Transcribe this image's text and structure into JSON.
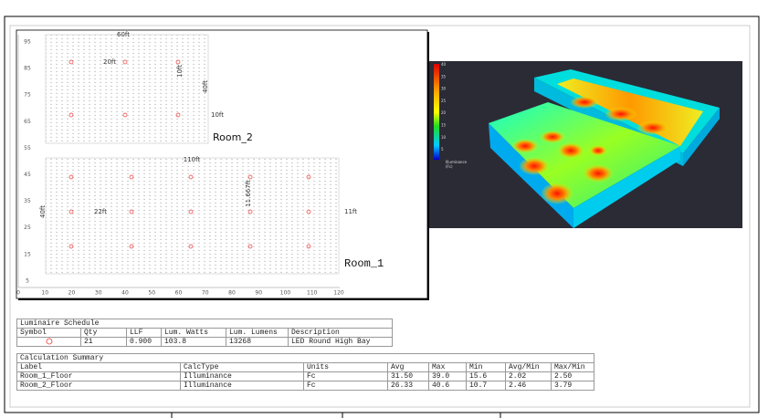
{
  "plan": {
    "y_axis": [
      95,
      85,
      75,
      65,
      55,
      45,
      35,
      25,
      15,
      5
    ],
    "x_axis": [
      0,
      10,
      20,
      30,
      40,
      50,
      60,
      70,
      80,
      90,
      100,
      110,
      120
    ],
    "rooms": [
      {
        "name": "Room_2",
        "dimensions": [
          "60ft",
          "20ft",
          "10ft",
          "40ft",
          "10ft"
        ]
      },
      {
        "name": "Room_1",
        "dimensions": [
          "110ft",
          "22ft",
          "11.667ft",
          "40ft",
          "11ft"
        ]
      }
    ]
  },
  "rendering": {
    "legend_values": [
      40,
      35,
      30,
      25,
      20,
      15,
      10,
      5
    ],
    "legend_title": "Illuminance",
    "legend_units": "(Fc)"
  },
  "luminaire_schedule": {
    "title": "Luminaire Schedule",
    "columns": [
      "Symbol",
      "Qty",
      "LLF",
      "Lum. Watts",
      "Lum. Lumens",
      "Description"
    ],
    "rows": [
      [
        "21",
        "0.900",
        "103.8",
        "13268",
        "LED Round High Bay"
      ]
    ]
  },
  "calculation_summary": {
    "title": "Calculation Summary",
    "columns": [
      "Label",
      "CalcType",
      "Units",
      "Avg",
      "Max",
      "Min",
      "Avg/Min",
      "Max/Min"
    ],
    "rows": [
      [
        "Room_1_Floor",
        "Illuminance",
        "Fc",
        "31.50",
        "39.0",
        "15.6",
        "2.02",
        "2.50"
      ],
      [
        "Room_2_Floor",
        "Illuminance",
        "Fc",
        "26.33",
        "40.6",
        "10.7",
        "2.46",
        "3.79"
      ]
    ]
  }
}
